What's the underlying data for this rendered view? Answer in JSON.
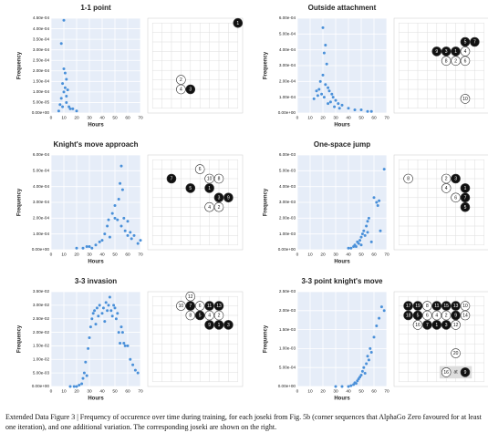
{
  "chart_data": [
    {
      "type": "scatter",
      "title": "1-1 point",
      "xlabel": "Hours",
      "ylabel": "Frequency",
      "color": "#4a90d9",
      "xlim": [
        0,
        70
      ],
      "xticks": [
        0,
        10,
        20,
        30,
        40,
        50,
        60,
        70
      ],
      "ylim": [
        0,
        0.00045
      ],
      "yticks": [
        {
          "value": 0,
          "label": "0.00e+00"
        },
        {
          "value": 5e-05,
          "label": "5.00e-05"
        },
        {
          "value": 0.0001,
          "label": "1.00e-04"
        },
        {
          "value": 0.00015,
          "label": "1.50e-04"
        },
        {
          "value": 0.0002,
          "label": "2.00e-04"
        },
        {
          "value": 0.00025,
          "label": "2.50e-04"
        },
        {
          "value": 0.0003,
          "label": "3.00e-04"
        },
        {
          "value": 0.00035,
          "label": "3.50e-04"
        },
        {
          "value": 0.0004,
          "label": "4.00e-04"
        },
        {
          "value": 0.00045,
          "label": "4.50e-04"
        }
      ],
      "x": [
        10,
        8,
        10,
        11,
        12,
        9,
        10,
        12,
        8,
        7,
        9,
        14,
        15,
        6,
        17,
        20,
        12,
        11,
        13
      ],
      "values": [
        0.00044,
        0.00033,
        0.00021,
        0.00019,
        0.00016,
        0.00014,
        0.0001,
        8e-05,
        7e-05,
        4e-05,
        3e-05,
        3e-05,
        2e-05,
        1e-05,
        2e-05,
        1e-05,
        5e-05,
        0.00012,
        0.00011
      ]
    },
    {
      "type": "scatter",
      "title": "Outside attachment",
      "xlabel": "Hours",
      "ylabel": "Frequency",
      "color": "#4a90d9",
      "xlim": [
        0,
        70
      ],
      "xticks": [
        0,
        10,
        20,
        30,
        40,
        50,
        60,
        70
      ],
      "ylim": [
        0,
        0.0006
      ],
      "yticks": [
        {
          "value": 0,
          "label": "0.00e+00"
        },
        {
          "value": 0.0001,
          "label": "1.00e-04"
        },
        {
          "value": 0.0002,
          "label": "2.00e-04"
        },
        {
          "value": 0.0003,
          "label": "3.00e-04"
        },
        {
          "value": 0.0004,
          "label": "4.00e-04"
        },
        {
          "value": 0.0005,
          "label": "5.00e-04"
        },
        {
          "value": 0.0006,
          "label": "6.00e-04"
        }
      ],
      "x": [
        20,
        22,
        21,
        23,
        20,
        18,
        17,
        22,
        24,
        25,
        19,
        21,
        15,
        16,
        28,
        30,
        27,
        26,
        32,
        35,
        40,
        45,
        50,
        55,
        58,
        13,
        24,
        29,
        33
      ],
      "values": [
        0.00054,
        0.00043,
        0.00038,
        0.00031,
        0.00024,
        0.0002,
        0.00015,
        0.00018,
        0.00016,
        0.00014,
        0.00012,
        0.0001,
        0.00014,
        0.00011,
        0.0001,
        8e-05,
        0.00012,
        7e-05,
        6e-05,
        5e-05,
        3e-05,
        2e-05,
        2e-05,
        1e-05,
        1e-05,
        9e-05,
        6e-05,
        4e-05,
        3e-05
      ]
    },
    {
      "type": "scatter",
      "title": "Knight's move approach",
      "xlabel": "Hours",
      "ylabel": "Frequency",
      "color": "#4a90d9",
      "xlim": [
        0,
        70
      ],
      "xticks": [
        0,
        10,
        20,
        30,
        40,
        50,
        60,
        70
      ],
      "ylim": [
        0,
        0.0006
      ],
      "yticks": [
        {
          "value": 0,
          "label": "0.00e+00"
        },
        {
          "value": 0.0001,
          "label": "1.00e-04"
        },
        {
          "value": 0.0002,
          "label": "2.00e-04"
        },
        {
          "value": 0.0003,
          "label": "3.00e-04"
        },
        {
          "value": 0.0004,
          "label": "4.00e-04"
        },
        {
          "value": 0.0005,
          "label": "5.00e-04"
        },
        {
          "value": 0.0006,
          "label": "6.00e-04"
        }
      ],
      "x": [
        20,
        25,
        28,
        30,
        32,
        35,
        38,
        40,
        42,
        44,
        45,
        46,
        48,
        50,
        50,
        52,
        53,
        54,
        55,
        55,
        56,
        57,
        58,
        60,
        60,
        62,
        63,
        65,
        68,
        70
      ],
      "values": [
        1e-05,
        1e-05,
        2e-05,
        2e-05,
        1e-05,
        3e-05,
        5e-05,
        6e-05,
        0.0001,
        0.00015,
        0.00019,
        8e-05,
        0.00023,
        0.0002,
        0.00028,
        0.00019,
        0.00032,
        0.00042,
        0.00053,
        0.00015,
        0.00038,
        0.0002,
        0.00012,
        0.00018,
        9e-05,
        0.00011,
        7e-05,
        9e-05,
        4e-05,
        6e-05
      ]
    },
    {
      "type": "scatter",
      "title": "One-space jump",
      "xlabel": "Hours",
      "ylabel": "Frequency",
      "color": "#4a90d9",
      "xlim": [
        0,
        70
      ],
      "xticks": [
        0,
        10,
        20,
        30,
        40,
        50,
        60,
        70
      ],
      "ylim": [
        0,
        0.006
      ],
      "yticks": [
        {
          "value": 0,
          "label": "0.00e+00"
        },
        {
          "value": 0.001,
          "label": "1.00e-03"
        },
        {
          "value": 0.002,
          "label": "2.00e-03"
        },
        {
          "value": 0.003,
          "label": "3.00e-03"
        },
        {
          "value": 0.004,
          "label": "4.00e-03"
        },
        {
          "value": 0.005,
          "label": "5.00e-03"
        },
        {
          "value": 0.006,
          "label": "6.00e-03"
        }
      ],
      "x": [
        40,
        42,
        44,
        45,
        46,
        47,
        48,
        49,
        50,
        50,
        51,
        52,
        53,
        54,
        55,
        55,
        56,
        58,
        60,
        62,
        63,
        64,
        65,
        68
      ],
      "values": [
        0.0001,
        0.0001,
        0.0002,
        0.0003,
        0.0002,
        0.0005,
        0.0004,
        0.0006,
        0.0008,
        0.0003,
        0.001,
        0.0012,
        0.0009,
        0.0015,
        0.0018,
        0.0011,
        0.002,
        0.0005,
        0.0033,
        0.003,
        0.0028,
        0.0031,
        0.0012,
        0.0051
      ]
    },
    {
      "type": "scatter",
      "title": "3-3 invasion",
      "xlabel": "Hours",
      "ylabel": "Frequency",
      "color": "#4a90d9",
      "xlim": [
        0,
        70
      ],
      "xticks": [
        0,
        10,
        20,
        30,
        40,
        50,
        60,
        70
      ],
      "ylim": [
        0,
        0.035
      ],
      "yticks": [
        {
          "value": 0,
          "label": "0.00e+00"
        },
        {
          "value": 0.005,
          "label": "5.00e-03"
        },
        {
          "value": 0.01,
          "label": "1.00e-02"
        },
        {
          "value": 0.015,
          "label": "1.50e-02"
        },
        {
          "value": 0.02,
          "label": "2.00e-02"
        },
        {
          "value": 0.025,
          "label": "2.50e-02"
        },
        {
          "value": 0.03,
          "label": "3.00e-02"
        },
        {
          "value": 0.035,
          "label": "3.50e-02"
        }
      ],
      "x": [
        15,
        18,
        20,
        22,
        24,
        25,
        26,
        27,
        28,
        29,
        30,
        31,
        32,
        33,
        34,
        35,
        36,
        37,
        38,
        40,
        41,
        42,
        43,
        44,
        45,
        46,
        47,
        48,
        49,
        50,
        51,
        52,
        53,
        54,
        55,
        56,
        57,
        58,
        60,
        62,
        64,
        66,
        68
      ],
      "values": [
        0,
        0,
        0,
        0.0005,
        0.001,
        0.003,
        0.005,
        0.009,
        0.004,
        0.014,
        0.018,
        0.022,
        0.025,
        0.027,
        0.028,
        0.023,
        0.029,
        0.026,
        0.03,
        0.027,
        0.029,
        0.024,
        0.031,
        0.028,
        0.03,
        0.033,
        0.028,
        0.026,
        0.03,
        0.029,
        0.025,
        0.027,
        0.02,
        0.016,
        0.022,
        0.02,
        0.016,
        0.015,
        0.015,
        0.01,
        0.008,
        0.006,
        0.005
      ]
    },
    {
      "type": "scatter",
      "title": "3-3 point knight's move",
      "xlabel": "Hours",
      "ylabel": "Frequency",
      "color": "#4a90d9",
      "xlim": [
        0,
        70
      ],
      "xticks": [
        0,
        10,
        20,
        30,
        40,
        50,
        60,
        70
      ],
      "ylim": [
        0,
        0.0025
      ],
      "yticks": [
        {
          "value": 0,
          "label": "0.00e+00"
        },
        {
          "value": 0.0005,
          "label": "5.00e-04"
        },
        {
          "value": 0.001,
          "label": "1.00e-03"
        },
        {
          "value": 0.0015,
          "label": "1.50e-03"
        },
        {
          "value": 0.002,
          "label": "2.00e-03"
        },
        {
          "value": 0.0025,
          "label": "2.50e-03"
        }
      ],
      "x": [
        30,
        35,
        40,
        42,
        44,
        45,
        46,
        47,
        48,
        49,
        50,
        51,
        52,
        53,
        54,
        55,
        56,
        57,
        58,
        60,
        62,
        64,
        66,
        68
      ],
      "values": [
        0,
        0,
        0,
        2e-05,
        5e-05,
        0.0001,
        8e-05,
        0.00015,
        0.0002,
        0.00025,
        0.0003,
        0.0004,
        0.0005,
        0.00035,
        0.0006,
        0.0008,
        0.0007,
        0.001,
        0.0009,
        0.0013,
        0.0016,
        0.0018,
        0.0021,
        0.002
      ]
    }
  ],
  "boards": [
    {
      "stones": [
        {
          "label": "1",
          "color": "black"
        },
        {
          "label": "2",
          "color": "white"
        },
        {
          "label": "4",
          "color": "white"
        },
        {
          "label": "3",
          "color": "black"
        }
      ]
    },
    {
      "stones": [
        {
          "label": "5",
          "color": "black"
        },
        {
          "label": "7",
          "color": "black"
        },
        {
          "label": "9",
          "color": "black"
        },
        {
          "label": "3",
          "color": "black"
        },
        {
          "label": "1",
          "color": "black"
        },
        {
          "label": "4",
          "color": "white"
        },
        {
          "label": "8",
          "color": "white"
        },
        {
          "label": "2",
          "color": "white"
        },
        {
          "label": "6",
          "color": "white"
        },
        {
          "label": "10",
          "color": "white"
        }
      ]
    },
    {
      "stones": [
        {
          "label": "6",
          "color": "white"
        },
        {
          "label": "7",
          "color": "black"
        },
        {
          "label": "10",
          "color": "white"
        },
        {
          "label": "8",
          "color": "white"
        },
        {
          "label": "5",
          "color": "black"
        },
        {
          "label": "1",
          "color": "black"
        },
        {
          "label": "3",
          "color": "black"
        },
        {
          "label": "9",
          "color": "black"
        },
        {
          "label": "4",
          "color": "white"
        },
        {
          "label": "2",
          "color": "white"
        }
      ]
    },
    {
      "stones": [
        {
          "label": "8",
          "color": "white"
        },
        {
          "label": "2",
          "color": "white"
        },
        {
          "label": "3",
          "color": "black"
        },
        {
          "label": "4",
          "color": "white"
        },
        {
          "label": "1",
          "color": "black"
        },
        {
          "label": "6",
          "color": "white"
        },
        {
          "label": "7",
          "color": "black"
        },
        {
          "label": "5",
          "color": "black"
        }
      ]
    },
    {
      "stones": [
        {
          "label": "12",
          "color": "white"
        },
        {
          "label": "10",
          "color": "white"
        },
        {
          "label": "7",
          "color": "black"
        },
        {
          "label": "6",
          "color": "white"
        },
        {
          "label": "11",
          "color": "black"
        },
        {
          "label": "13",
          "color": "black"
        },
        {
          "label": "8",
          "color": "white"
        },
        {
          "label": "5",
          "color": "black"
        },
        {
          "label": "4",
          "color": "white"
        },
        {
          "label": "2",
          "color": "white"
        },
        {
          "label": "9",
          "color": "black"
        },
        {
          "label": "1",
          "color": "black"
        },
        {
          "label": "3",
          "color": "black"
        }
      ]
    },
    {
      "stones": [
        {
          "label": "17",
          "color": "black"
        },
        {
          "label": "19",
          "color": "black"
        },
        {
          "label": "8",
          "color": "white"
        },
        {
          "label": "11",
          "color": "black"
        },
        {
          "label": "15",
          "color": "black"
        },
        {
          "label": "13",
          "color": "black"
        },
        {
          "label": "10",
          "color": "white"
        },
        {
          "label": "18",
          "color": "black"
        },
        {
          "label": "5",
          "color": "black"
        },
        {
          "label": "6",
          "color": "white"
        },
        {
          "label": "4",
          "color": "white"
        },
        {
          "label": "2",
          "color": "white"
        },
        {
          "label": "9",
          "color": "black"
        },
        {
          "label": "14",
          "color": "white"
        },
        {
          "label": "16",
          "color": "white"
        },
        {
          "label": "7",
          "color": "black"
        },
        {
          "label": "1",
          "color": "black"
        },
        {
          "label": "3",
          "color": "black"
        },
        {
          "label": "12",
          "color": "white"
        },
        {
          "label": "20",
          "color": "white"
        }
      ],
      "note": {
        "stones": [
          {
            "label": "16",
            "color": "white"
          },
          {
            "label": "9",
            "color": "black"
          }
        ],
        "text": "at"
      }
    }
  ],
  "caption": "Extended Data Figure 3 | Frequency of occurence over time during training, for each joseki from Fig. 5b (corner sequences that AlphaGo Zero favoured for at least one iteration), and one additional variation. The corresponding joseki are shown on the right."
}
